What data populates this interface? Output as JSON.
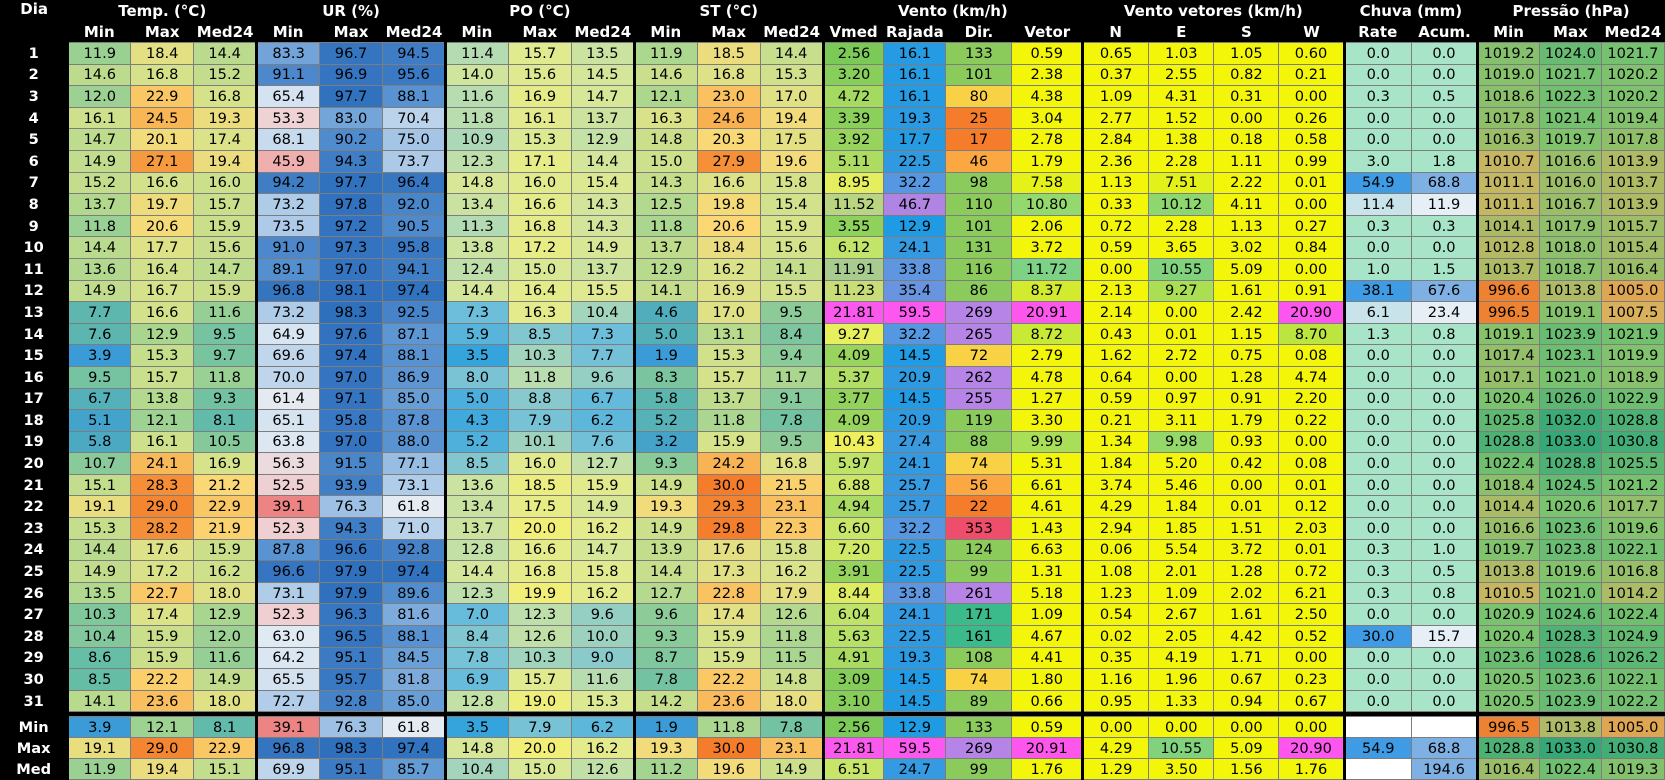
{
  "headers": {
    "groups": [
      {
        "label": "Dia",
        "span": 1
      },
      {
        "label": "Temp. (°C)",
        "span": 3
      },
      {
        "label": "UR (%)",
        "span": 3
      },
      {
        "label": "PO (°C)",
        "span": 3
      },
      {
        "label": "ST (°C)",
        "span": 3
      },
      {
        "label": "Vento (km/h)",
        "span": 4
      },
      {
        "label": "Vento vetores (km/h)",
        "span": 4
      },
      {
        "label": "Chuva (mm)",
        "span": 2
      },
      {
        "label": "Pressão (hPa)",
        "span": 3
      }
    ],
    "columns": [
      "Min",
      "Max",
      "Med24",
      "Min",
      "Max",
      "Med24",
      "Min",
      "Max",
      "Med24",
      "Min",
      "Max",
      "Med24",
      "Vmed",
      "Rajada",
      "Dir.",
      "Vetor",
      "N",
      "E",
      "S",
      "W",
      "Rate",
      "Acum.",
      "Min",
      "Max",
      "Med24"
    ]
  },
  "rows": [
    {
      "day": "1",
      "v": [
        "11.9",
        "18.4",
        "14.4",
        "83.3",
        "96.7",
        "94.5",
        "11.4",
        "15.7",
        "13.5",
        "11.9",
        "18.5",
        "14.4",
        "2.56",
        "16.1",
        "133",
        "0.59",
        "0.65",
        "1.03",
        "1.05",
        "0.60",
        "0.0",
        "0.0",
        "1019.2",
        "1024.0",
        "1021.7"
      ]
    },
    {
      "day": "2",
      "v": [
        "14.6",
        "16.8",
        "15.2",
        "91.1",
        "96.9",
        "95.6",
        "14.0",
        "15.6",
        "14.5",
        "14.6",
        "16.8",
        "15.3",
        "3.20",
        "16.1",
        "101",
        "2.38",
        "0.37",
        "2.55",
        "0.82",
        "0.21",
        "0.0",
        "0.0",
        "1019.0",
        "1021.7",
        "1020.2"
      ]
    },
    {
      "day": "3",
      "v": [
        "12.0",
        "22.9",
        "16.8",
        "65.4",
        "97.7",
        "88.1",
        "11.6",
        "16.9",
        "14.7",
        "12.1",
        "23.0",
        "17.0",
        "4.72",
        "16.1",
        "80",
        "4.38",
        "1.09",
        "4.31",
        "0.31",
        "0.00",
        "0.3",
        "0.5",
        "1018.6",
        "1022.3",
        "1020.2"
      ]
    },
    {
      "day": "4",
      "v": [
        "16.1",
        "24.5",
        "19.3",
        "53.3",
        "83.0",
        "70.4",
        "11.8",
        "16.1",
        "13.7",
        "16.3",
        "24.6",
        "19.4",
        "3.39",
        "19.3",
        "25",
        "3.04",
        "2.77",
        "1.52",
        "0.00",
        "0.26",
        "0.0",
        "0.0",
        "1017.8",
        "1021.4",
        "1019.4"
      ]
    },
    {
      "day": "5",
      "v": [
        "14.7",
        "20.1",
        "17.4",
        "68.1",
        "90.2",
        "75.0",
        "10.9",
        "15.3",
        "12.9",
        "14.8",
        "20.3",
        "17.5",
        "3.92",
        "17.7",
        "17",
        "2.78",
        "2.84",
        "1.38",
        "0.18",
        "0.58",
        "0.0",
        "0.0",
        "1016.3",
        "1019.7",
        "1017.8"
      ]
    },
    {
      "day": "6",
      "v": [
        "14.9",
        "27.1",
        "19.4",
        "45.9",
        "94.3",
        "73.7",
        "12.3",
        "17.1",
        "14.4",
        "15.0",
        "27.9",
        "19.6",
        "5.11",
        "22.5",
        "46",
        "1.79",
        "2.36",
        "2.28",
        "1.11",
        "0.99",
        "3.0",
        "1.8",
        "1010.7",
        "1016.6",
        "1013.9"
      ]
    },
    {
      "day": "7",
      "v": [
        "15.2",
        "16.6",
        "16.0",
        "94.2",
        "97.7",
        "96.4",
        "14.8",
        "16.0",
        "15.4",
        "14.3",
        "16.6",
        "15.8",
        "8.95",
        "32.2",
        "98",
        "7.58",
        "1.13",
        "7.51",
        "2.22",
        "0.01",
        "54.9",
        "68.8",
        "1011.1",
        "1016.0",
        "1013.7"
      ]
    },
    {
      "day": "8",
      "v": [
        "13.7",
        "19.7",
        "15.7",
        "73.2",
        "97.8",
        "92.0",
        "13.4",
        "16.6",
        "14.3",
        "12.5",
        "19.8",
        "15.4",
        "11.52",
        "46.7",
        "110",
        "10.80",
        "0.33",
        "10.12",
        "4.11",
        "0.00",
        "11.4",
        "11.9",
        "1011.1",
        "1016.7",
        "1013.9"
      ]
    },
    {
      "day": "9",
      "v": [
        "11.8",
        "20.6",
        "15.9",
        "73.5",
        "97.2",
        "90.5",
        "11.3",
        "16.8",
        "14.3",
        "11.8",
        "20.6",
        "15.9",
        "3.55",
        "12.9",
        "101",
        "2.06",
        "0.72",
        "2.28",
        "1.13",
        "0.27",
        "0.3",
        "0.3",
        "1014.1",
        "1017.9",
        "1015.7"
      ]
    },
    {
      "day": "10",
      "v": [
        "14.4",
        "17.7",
        "15.6",
        "91.0",
        "97.3",
        "95.8",
        "13.8",
        "17.2",
        "14.9",
        "13.7",
        "18.4",
        "15.6",
        "6.12",
        "24.1",
        "131",
        "3.72",
        "0.59",
        "3.65",
        "3.02",
        "0.84",
        "0.0",
        "0.0",
        "1012.8",
        "1018.0",
        "1015.4"
      ]
    },
    {
      "day": "11",
      "v": [
        "13.6",
        "16.4",
        "14.7",
        "89.1",
        "97.0",
        "94.1",
        "12.4",
        "15.0",
        "13.7",
        "12.9",
        "16.2",
        "14.1",
        "11.91",
        "33.8",
        "116",
        "11.72",
        "0.00",
        "10.55",
        "5.09",
        "0.00",
        "1.0",
        "1.5",
        "1013.7",
        "1018.7",
        "1016.4"
      ]
    },
    {
      "day": "12",
      "v": [
        "14.9",
        "16.7",
        "15.9",
        "96.8",
        "98.1",
        "97.4",
        "14.4",
        "16.4",
        "15.5",
        "14.1",
        "16.9",
        "15.5",
        "11.23",
        "35.4",
        "86",
        "8.37",
        "2.13",
        "9.27",
        "1.61",
        "0.91",
        "38.1",
        "67.6",
        "996.6",
        "1013.8",
        "1005.0"
      ]
    },
    {
      "day": "13",
      "v": [
        "7.7",
        "16.6",
        "11.6",
        "73.2",
        "98.3",
        "92.5",
        "7.3",
        "16.3",
        "10.4",
        "4.6",
        "17.0",
        "9.5",
        "21.81",
        "59.5",
        "269",
        "20.91",
        "2.14",
        "0.00",
        "2.42",
        "20.90",
        "6.1",
        "23.4",
        "996.5",
        "1019.1",
        "1007.5"
      ]
    },
    {
      "day": "14",
      "v": [
        "7.6",
        "12.9",
        "9.5",
        "64.9",
        "97.6",
        "87.1",
        "5.9",
        "8.5",
        "7.3",
        "5.0",
        "13.1",
        "8.4",
        "9.27",
        "32.2",
        "265",
        "8.72",
        "0.43",
        "0.01",
        "1.15",
        "8.70",
        "1.3",
        "0.8",
        "1019.1",
        "1023.9",
        "1021.9"
      ]
    },
    {
      "day": "15",
      "v": [
        "3.9",
        "15.3",
        "9.7",
        "69.6",
        "97.4",
        "88.1",
        "3.5",
        "10.3",
        "7.7",
        "1.9",
        "15.3",
        "9.4",
        "4.09",
        "14.5",
        "72",
        "2.79",
        "1.62",
        "2.72",
        "0.75",
        "0.08",
        "0.0",
        "0.0",
        "1017.4",
        "1023.1",
        "1019.9"
      ]
    },
    {
      "day": "16",
      "v": [
        "9.5",
        "15.7",
        "11.8",
        "70.0",
        "97.0",
        "86.9",
        "8.0",
        "11.8",
        "9.6",
        "8.3",
        "15.7",
        "11.7",
        "5.37",
        "20.9",
        "262",
        "4.78",
        "0.64",
        "0.00",
        "1.28",
        "4.74",
        "0.0",
        "0.0",
        "1017.1",
        "1021.0",
        "1018.9"
      ]
    },
    {
      "day": "17",
      "v": [
        "6.7",
        "13.8",
        "9.3",
        "61.4",
        "97.1",
        "85.0",
        "5.0",
        "8.8",
        "6.7",
        "5.8",
        "13.7",
        "9.1",
        "3.77",
        "14.5",
        "255",
        "1.27",
        "0.59",
        "0.97",
        "0.91",
        "2.20",
        "0.0",
        "0.0",
        "1020.4",
        "1026.0",
        "1022.9"
      ]
    },
    {
      "day": "18",
      "v": [
        "5.1",
        "12.1",
        "8.1",
        "65.1",
        "95.8",
        "87.8",
        "4.3",
        "7.9",
        "6.2",
        "5.2",
        "11.8",
        "7.8",
        "4.09",
        "20.9",
        "119",
        "3.30",
        "0.21",
        "3.11",
        "1.79",
        "0.22",
        "0.0",
        "0.0",
        "1025.8",
        "1032.0",
        "1028.8"
      ]
    },
    {
      "day": "19",
      "v": [
        "5.8",
        "16.1",
        "10.5",
        "63.8",
        "97.0",
        "88.0",
        "5.2",
        "10.1",
        "7.6",
        "3.2",
        "15.9",
        "9.5",
        "10.43",
        "27.4",
        "88",
        "9.99",
        "1.34",
        "9.98",
        "0.93",
        "0.00",
        "0.0",
        "0.0",
        "1028.8",
        "1033.0",
        "1030.8"
      ]
    },
    {
      "day": "20",
      "v": [
        "10.7",
        "24.1",
        "16.9",
        "56.3",
        "91.5",
        "77.1",
        "8.5",
        "16.0",
        "12.7",
        "9.3",
        "24.2",
        "16.8",
        "5.97",
        "24.1",
        "74",
        "5.31",
        "1.84",
        "5.20",
        "0.42",
        "0.08",
        "0.0",
        "0.0",
        "1022.4",
        "1028.8",
        "1025.5"
      ]
    },
    {
      "day": "21",
      "v": [
        "15.1",
        "28.3",
        "21.2",
        "52.5",
        "93.9",
        "73.1",
        "13.6",
        "18.5",
        "15.9",
        "14.9",
        "30.0",
        "21.5",
        "6.88",
        "25.7",
        "56",
        "6.61",
        "3.74",
        "5.46",
        "0.00",
        "0.01",
        "0.0",
        "0.0",
        "1018.4",
        "1024.5",
        "1021.2"
      ]
    },
    {
      "day": "22",
      "v": [
        "19.1",
        "29.0",
        "22.9",
        "39.1",
        "76.3",
        "61.8",
        "13.4",
        "17.5",
        "14.9",
        "19.3",
        "29.3",
        "23.1",
        "4.94",
        "25.7",
        "22",
        "4.61",
        "4.29",
        "1.84",
        "0.01",
        "0.12",
        "0.0",
        "0.0",
        "1014.4",
        "1020.6",
        "1017.7"
      ]
    },
    {
      "day": "23",
      "v": [
        "15.3",
        "28.2",
        "21.9",
        "52.3",
        "94.3",
        "71.0",
        "13.7",
        "20.0",
        "16.2",
        "14.9",
        "29.8",
        "22.3",
        "6.60",
        "32.2",
        "353",
        "1.43",
        "2.94",
        "1.85",
        "1.51",
        "2.03",
        "0.0",
        "0.0",
        "1016.6",
        "1023.6",
        "1019.6"
      ]
    },
    {
      "day": "24",
      "v": [
        "14.4",
        "17.6",
        "15.9",
        "87.8",
        "96.6",
        "92.8",
        "12.8",
        "16.6",
        "14.7",
        "13.9",
        "17.6",
        "15.8",
        "7.20",
        "22.5",
        "124",
        "6.63",
        "0.06",
        "5.54",
        "3.72",
        "0.01",
        "0.3",
        "1.0",
        "1019.7",
        "1023.8",
        "1022.1"
      ]
    },
    {
      "day": "25",
      "v": [
        "14.9",
        "17.2",
        "16.2",
        "96.6",
        "97.9",
        "97.4",
        "14.4",
        "16.8",
        "15.8",
        "14.4",
        "17.3",
        "16.2",
        "3.91",
        "22.5",
        "99",
        "1.31",
        "1.08",
        "2.01",
        "1.28",
        "0.72",
        "0.3",
        "0.5",
        "1013.8",
        "1019.6",
        "1016.8"
      ]
    },
    {
      "day": "26",
      "v": [
        "13.5",
        "22.7",
        "18.0",
        "73.1",
        "97.9",
        "89.6",
        "12.3",
        "19.9",
        "16.2",
        "12.7",
        "22.8",
        "17.9",
        "8.44",
        "33.8",
        "261",
        "5.18",
        "1.23",
        "1.09",
        "2.02",
        "6.21",
        "0.3",
        "0.8",
        "1010.5",
        "1021.0",
        "1014.2"
      ]
    },
    {
      "day": "27",
      "v": [
        "10.3",
        "17.4",
        "12.9",
        "52.3",
        "96.3",
        "81.6",
        "7.0",
        "12.3",
        "9.6",
        "9.6",
        "17.4",
        "12.6",
        "6.04",
        "24.1",
        "171",
        "1.09",
        "0.54",
        "2.67",
        "1.61",
        "2.50",
        "0.0",
        "0.0",
        "1020.9",
        "1024.6",
        "1022.4"
      ]
    },
    {
      "day": "28",
      "v": [
        "10.4",
        "15.9",
        "12.0",
        "63.0",
        "96.5",
        "88.1",
        "8.4",
        "12.6",
        "10.0",
        "9.3",
        "15.9",
        "11.8",
        "5.63",
        "22.5",
        "161",
        "4.67",
        "0.02",
        "2.05",
        "4.42",
        "0.52",
        "30.0",
        "15.7",
        "1020.4",
        "1028.3",
        "1024.9"
      ]
    },
    {
      "day": "29",
      "v": [
        "8.6",
        "15.9",
        "11.6",
        "64.2",
        "95.1",
        "84.5",
        "7.8",
        "10.3",
        "9.0",
        "8.7",
        "15.9",
        "11.5",
        "4.91",
        "19.3",
        "108",
        "4.41",
        "0.35",
        "4.19",
        "1.71",
        "0.00",
        "0.0",
        "0.0",
        "1023.6",
        "1028.6",
        "1026.2"
      ]
    },
    {
      "day": "30",
      "v": [
        "8.5",
        "22.2",
        "14.9",
        "65.5",
        "95.7",
        "81.8",
        "6.9",
        "15.7",
        "11.6",
        "7.8",
        "22.2",
        "14.8",
        "3.09",
        "14.5",
        "74",
        "1.80",
        "1.16",
        "1.96",
        "0.67",
        "0.23",
        "0.0",
        "0.0",
        "1020.5",
        "1023.6",
        "1022.1"
      ]
    },
    {
      "day": "31",
      "v": [
        "14.1",
        "23.6",
        "18.0",
        "72.7",
        "92.8",
        "85.0",
        "12.8",
        "19.0",
        "15.3",
        "14.2",
        "23.6",
        "18.0",
        "3.10",
        "14.5",
        "89",
        "0.66",
        "0.95",
        "1.33",
        "0.94",
        "0.67",
        "0.0",
        "0.0",
        "1020.5",
        "1023.9",
        "1022.2"
      ]
    }
  ],
  "summary": [
    {
      "label": "Min",
      "v": [
        "3.9",
        "12.1",
        "8.1",
        "39.1",
        "76.3",
        "61.8",
        "3.5",
        "7.9",
        "6.2",
        "1.9",
        "11.8",
        "7.8",
        "2.56",
        "12.9",
        "133",
        "0.59",
        "0.00",
        "0.00",
        "0.00",
        "0.00",
        "",
        "",
        "996.5",
        "1013.8",
        "1005.0"
      ]
    },
    {
      "label": "Max",
      "v": [
        "19.1",
        "29.0",
        "22.9",
        "96.8",
        "98.3",
        "97.4",
        "14.8",
        "20.0",
        "16.2",
        "19.3",
        "30.0",
        "23.1",
        "21.81",
        "59.5",
        "269",
        "20.91",
        "4.29",
        "10.55",
        "5.09",
        "20.90",
        "54.9",
        "68.8",
        "1028.8",
        "1033.0",
        "1030.8"
      ]
    },
    {
      "label": "Med",
      "v": [
        "11.9",
        "19.4",
        "15.1",
        "69.9",
        "95.1",
        "85.7",
        "10.4",
        "15.0",
        "12.6",
        "11.2",
        "19.6",
        "14.9",
        "6.51",
        "24.7",
        "99",
        "1.76",
        "1.29",
        "3.50",
        "1.56",
        "1.76",
        "",
        "194.6",
        "1016.4",
        "1022.4",
        "1019.3"
      ]
    }
  ]
}
